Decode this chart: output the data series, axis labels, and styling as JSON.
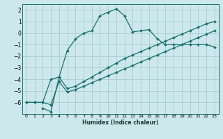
{
  "xlabel": "Humidex (Indice chaleur)",
  "ylabel": "",
  "bg_color": "#cce8ec",
  "grid_color": "#aacccc",
  "line_color": "#1a7070",
  "marker_color": "#1a7070",
  "xlim": [
    -0.5,
    23.5
  ],
  "ylim": [
    -7,
    2.5
  ],
  "xticks": [
    0,
    1,
    2,
    3,
    4,
    5,
    6,
    7,
    8,
    9,
    10,
    11,
    12,
    13,
    14,
    15,
    16,
    17,
    18,
    19,
    20,
    21,
    22,
    23
  ],
  "yticks": [
    -6,
    -5,
    -4,
    -3,
    -2,
    -1,
    0,
    1,
    2
  ],
  "curve1_x": [
    0,
    1,
    2,
    3,
    4,
    5,
    6,
    7,
    8,
    9,
    10,
    11,
    12,
    13,
    14,
    15,
    16,
    17,
    18,
    19,
    20,
    21,
    22,
    23
  ],
  "curve1_y": [
    -6.0,
    -6.0,
    -6.0,
    -4.0,
    -3.8,
    -1.5,
    -0.5,
    0.0,
    0.2,
    1.5,
    1.8,
    2.1,
    1.5,
    0.1,
    0.2,
    0.3,
    -0.5,
    -1.0,
    -1.0,
    -1.0,
    -1.0,
    -1.0,
    -1.0,
    -1.2
  ],
  "curve2_x": [
    2,
    3,
    4,
    5,
    6,
    7,
    8,
    9,
    10,
    11,
    12,
    13,
    14,
    15,
    16,
    17,
    18,
    19,
    20,
    21,
    22,
    23
  ],
  "curve2_y": [
    -6.5,
    -6.8,
    -3.8,
    -4.8,
    -4.6,
    -4.2,
    -3.8,
    -3.4,
    -3.0,
    -2.6,
    -2.2,
    -1.9,
    -1.6,
    -1.3,
    -1.0,
    -0.7,
    -0.4,
    -0.1,
    0.2,
    0.5,
    0.8,
    1.0
  ],
  "curve3_x": [
    0,
    1,
    2,
    3,
    4,
    5,
    6,
    7,
    8,
    9,
    10,
    11,
    12,
    13,
    14,
    15,
    16,
    17,
    18,
    19,
    20,
    21,
    22,
    23
  ],
  "curve3_y": [
    -6.0,
    -6.0,
    -6.0,
    -6.2,
    -4.2,
    -5.1,
    -4.9,
    -4.6,
    -4.3,
    -4.0,
    -3.7,
    -3.4,
    -3.1,
    -2.8,
    -2.5,
    -2.2,
    -1.9,
    -1.6,
    -1.3,
    -1.0,
    -0.7,
    -0.4,
    -0.1,
    0.2
  ]
}
